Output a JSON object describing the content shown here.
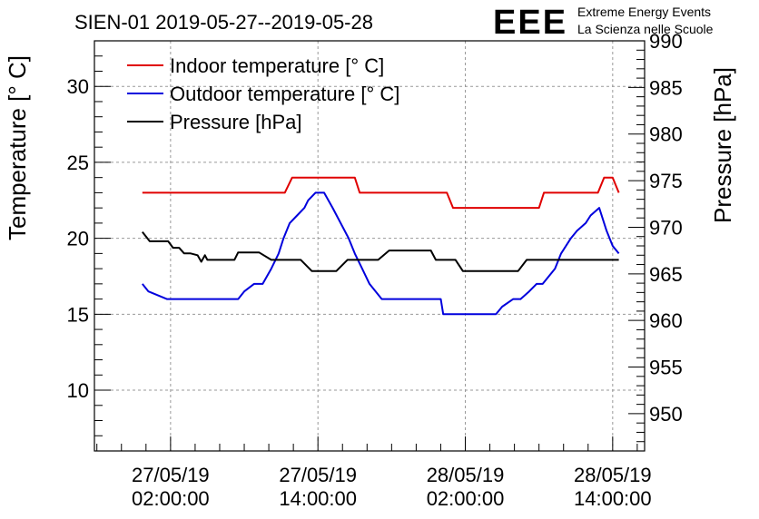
{
  "logo": {
    "letters": "EEE",
    "line1": "Extreme Energy Events",
    "line2": "La Scienza nelle Scuole",
    "color": "#1a1aff"
  },
  "chart_data": {
    "type": "line",
    "title": "SIEN-01 2019-05-27--2019-05-28",
    "ylabel": "Temperature [° C]",
    "y2label": "Pressure [hPa]",
    "xlabel": "",
    "grid": true,
    "legend_position": "top-left",
    "x_unit": "hours since 2019-05-27 00:00:00",
    "xlim": [
      -4.2,
      40.6
    ],
    "ylim": [
      6,
      33
    ],
    "y2lim": [
      946,
      990
    ],
    "y_ticks": [
      10,
      15,
      20,
      25,
      30
    ],
    "y2_ticks": [
      950,
      955,
      960,
      965,
      970,
      975,
      980,
      985,
      990
    ],
    "x_ticks": [
      {
        "x": 2,
        "line1": "27/05/19",
        "line2": "02:00:00"
      },
      {
        "x": 14,
        "line1": "27/05/19",
        "line2": "14:00:00"
      },
      {
        "x": 26,
        "line1": "28/05/19",
        "line2": "02:00:00"
      },
      {
        "x": 38,
        "line1": "28/05/19",
        "line2": "14:00:00"
      }
    ],
    "series": [
      {
        "name": "Indoor temperature [° C]",
        "color": "#e00000",
        "axis": "left",
        "x": [
          -0.3,
          11.3,
          11.9,
          17.0,
          17.4,
          24.5,
          25.0,
          32.0,
          32.4,
          36.8,
          37.3,
          38.0,
          38.5
        ],
        "values": [
          23,
          23,
          24,
          24,
          23,
          23,
          22,
          22,
          23,
          23,
          24,
          24,
          23
        ]
      },
      {
        "name": "Outdoor temperature [° C]",
        "color": "#0000dd",
        "axis": "left",
        "x": [
          -0.3,
          0.2,
          1.7,
          7.5,
          8.0,
          8.8,
          9.5,
          10.2,
          10.8,
          11.2,
          11.7,
          12.3,
          12.9,
          13.2,
          13.8,
          14.5,
          15.2,
          16.5,
          17.0,
          17.6,
          18.2,
          19.2,
          24.0,
          24.2,
          25.0,
          28.5,
          29.0,
          29.9,
          30.5,
          31.2,
          31.8,
          32.3,
          33.3,
          33.8,
          34.6,
          35.1,
          35.8,
          36.2,
          36.9,
          37.5,
          38.0,
          38.5
        ],
        "values": [
          17,
          16.5,
          16,
          16,
          16.5,
          17,
          17,
          18,
          19,
          20,
          21,
          21.5,
          22,
          22.5,
          23,
          23,
          22,
          20,
          19,
          18,
          17,
          16,
          16,
          15,
          15,
          15,
          15.5,
          16,
          16,
          16.5,
          17,
          17,
          18,
          19,
          20,
          20.5,
          21,
          21.5,
          22,
          20.5,
          19.5,
          19
        ]
      },
      {
        "name": "Pressure [hPa]",
        "color": "#000000",
        "axis": "right",
        "x": [
          -0.3,
          0.3,
          1.8,
          2.2,
          2.7,
          3.1,
          3.6,
          4.2,
          4.5,
          4.8,
          5.0,
          7.2,
          7.5,
          8.5,
          9.2,
          10.2,
          10.7,
          12.6,
          13.5,
          15.5,
          16.4,
          18.9,
          19.8,
          22.5,
          23.2,
          23.6,
          25.2,
          25.8,
          26.6,
          30.3,
          31.0,
          31.8,
          33.8,
          34.5,
          38.5
        ],
        "values": [
          969.5,
          968.5,
          968.5,
          967.8,
          967.8,
          967.2,
          967.2,
          967.0,
          966.3,
          967.0,
          966.5,
          966.5,
          967.3,
          967.3,
          967.3,
          966.5,
          966.5,
          966.5,
          965.3,
          965.3,
          966.5,
          966.5,
          967.5,
          967.5,
          967.5,
          966.5,
          966.5,
          965.3,
          965.3,
          965.3,
          966.5,
          966.5,
          966.5,
          966.5,
          966.5
        ]
      }
    ]
  }
}
